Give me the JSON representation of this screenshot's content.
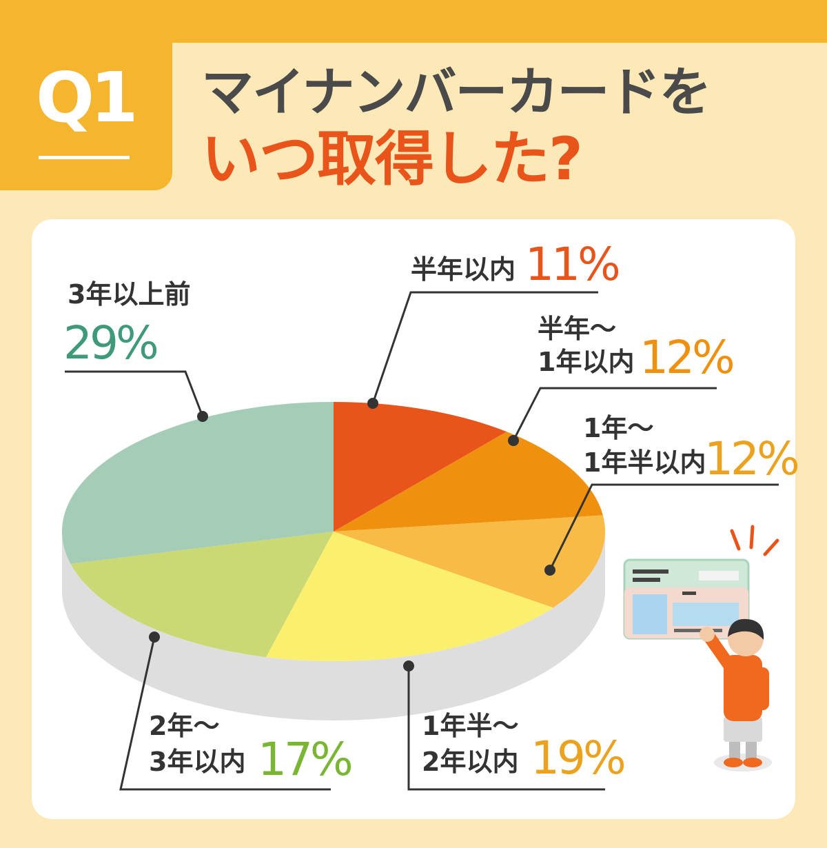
{
  "header": {
    "q_number": "Q1",
    "title_line1": "マイナンバーカードを",
    "title_line2": "いつ取得した?"
  },
  "chart_data": {
    "type": "pie",
    "categories": [
      "半年以内",
      "半年〜1年以内",
      "1年〜1年半以内",
      "1年半〜2年以内",
      "2年〜3年以内",
      "3年以上前"
    ],
    "values": [
      11,
      12,
      12,
      19,
      17,
      29
    ],
    "unit": "%",
    "labels": [
      {
        "lines": [
          "半年以内"
        ],
        "pct": "11%"
      },
      {
        "lines": [
          "半年〜",
          "1年以内"
        ],
        "pct": "12%"
      },
      {
        "lines": [
          "1年〜",
          "1年半以内"
        ],
        "pct": "12%"
      },
      {
        "lines": [
          "1年半〜",
          "2年以内"
        ],
        "pct": "19%"
      },
      {
        "lines": [
          "2年〜",
          "3年以内"
        ],
        "pct": "17%"
      },
      {
        "lines": [
          "3年以上前"
        ],
        "pct": "29%"
      }
    ],
    "colors": [
      "#e8541a",
      "#f0900f",
      "#f7bb46",
      "#fbef6e",
      "#cbd974",
      "#a4ccb6"
    ],
    "pct_colors": [
      "#e8541a",
      "#f0900f",
      "#eba21f",
      "#eba21f",
      "#7ab534",
      "#3f9a7a"
    ],
    "legend": "none"
  }
}
